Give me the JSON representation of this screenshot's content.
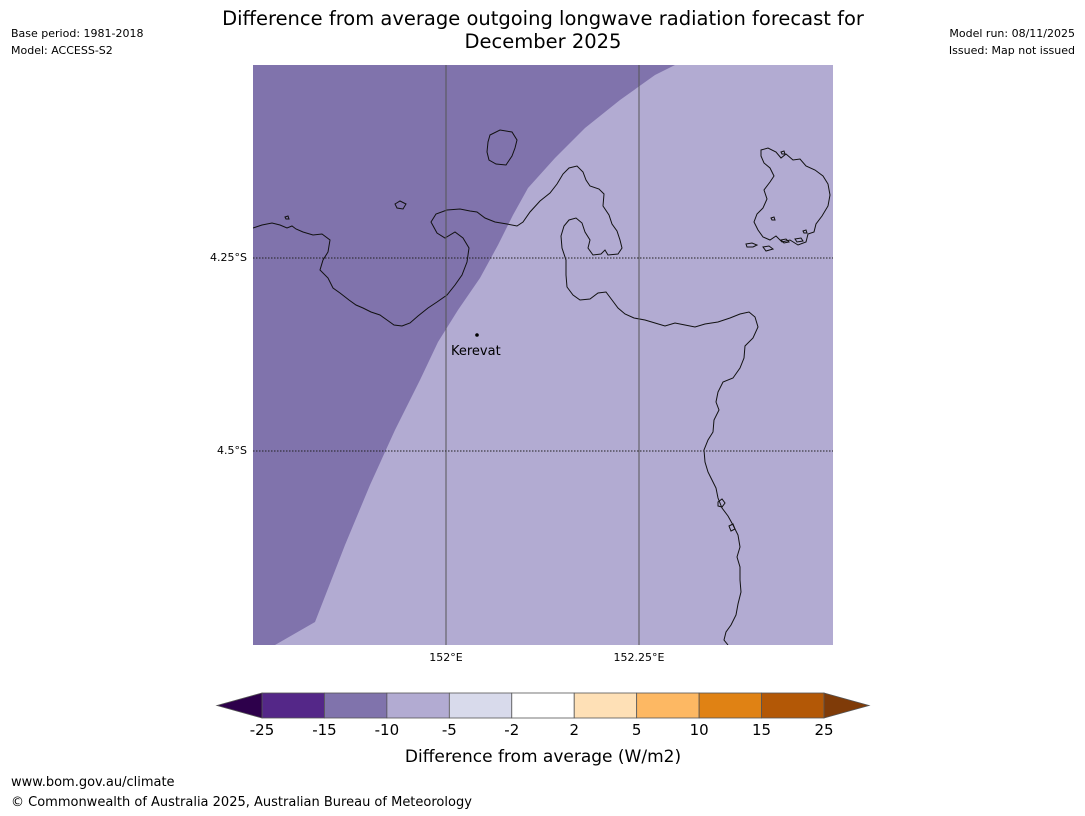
{
  "header": {
    "base_period": "Base period: 1981-2018",
    "model": "Model: ACCESS-S2",
    "model_run": "Model run: 08/11/2025",
    "issued": "Issued: Map not issued",
    "title_line1": "Difference from average outgoing longwave radiation forecast for",
    "title_line2": "December 2025"
  },
  "map": {
    "place_label": "Kerevat",
    "lat_labels": [
      "4.25°S",
      "4.5°S"
    ],
    "lon_labels": [
      "152°E",
      "152.25°E"
    ],
    "regions": [
      {
        "category": "-15 to -10",
        "color": "#8073ac"
      },
      {
        "category": "-10 to -5",
        "color": "#b2abd2"
      }
    ]
  },
  "colorbar": {
    "label": "Difference from average (W/m2)",
    "ticks": [
      "-25",
      "-15",
      "-10",
      "-5",
      "-2",
      "2",
      "5",
      "10",
      "15",
      "25"
    ],
    "low_extend_color": "#2d004b",
    "colors": [
      "#542788",
      "#8073ac",
      "#b2abd2",
      "#d8daeb",
      "#ffffff",
      "#fee0b6",
      "#fdb863",
      "#e08214",
      "#b35806"
    ],
    "high_extend_color": "#7f3b08"
  },
  "footer": {
    "url": "www.bom.gov.au/climate",
    "copyright": "© Commonwealth of Australia 2025, Australian Bureau of Meteorology"
  }
}
